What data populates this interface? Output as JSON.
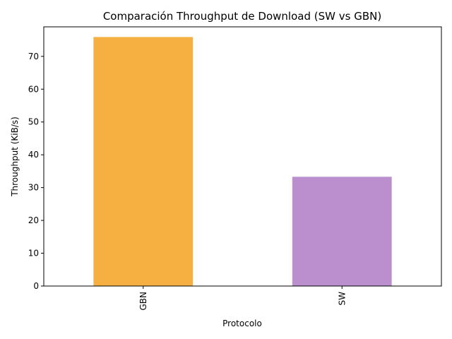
{
  "chart_data": {
    "type": "bar",
    "title": "Comparación Throughput de Download (SW vs GBN)",
    "xlabel": "Protocolo",
    "ylabel": "Throughput (KiB/s)",
    "categories": [
      "GBN",
      "SW"
    ],
    "values": [
      75.9,
      33.3
    ],
    "colors": [
      "#f5b041",
      "#bb8fce"
    ],
    "ylim": [
      0,
      79.0
    ],
    "yticks": [
      0,
      10,
      20,
      30,
      40,
      50,
      60,
      70
    ],
    "xtick_rotation": "vertical",
    "grid": false,
    "legend": "none"
  }
}
